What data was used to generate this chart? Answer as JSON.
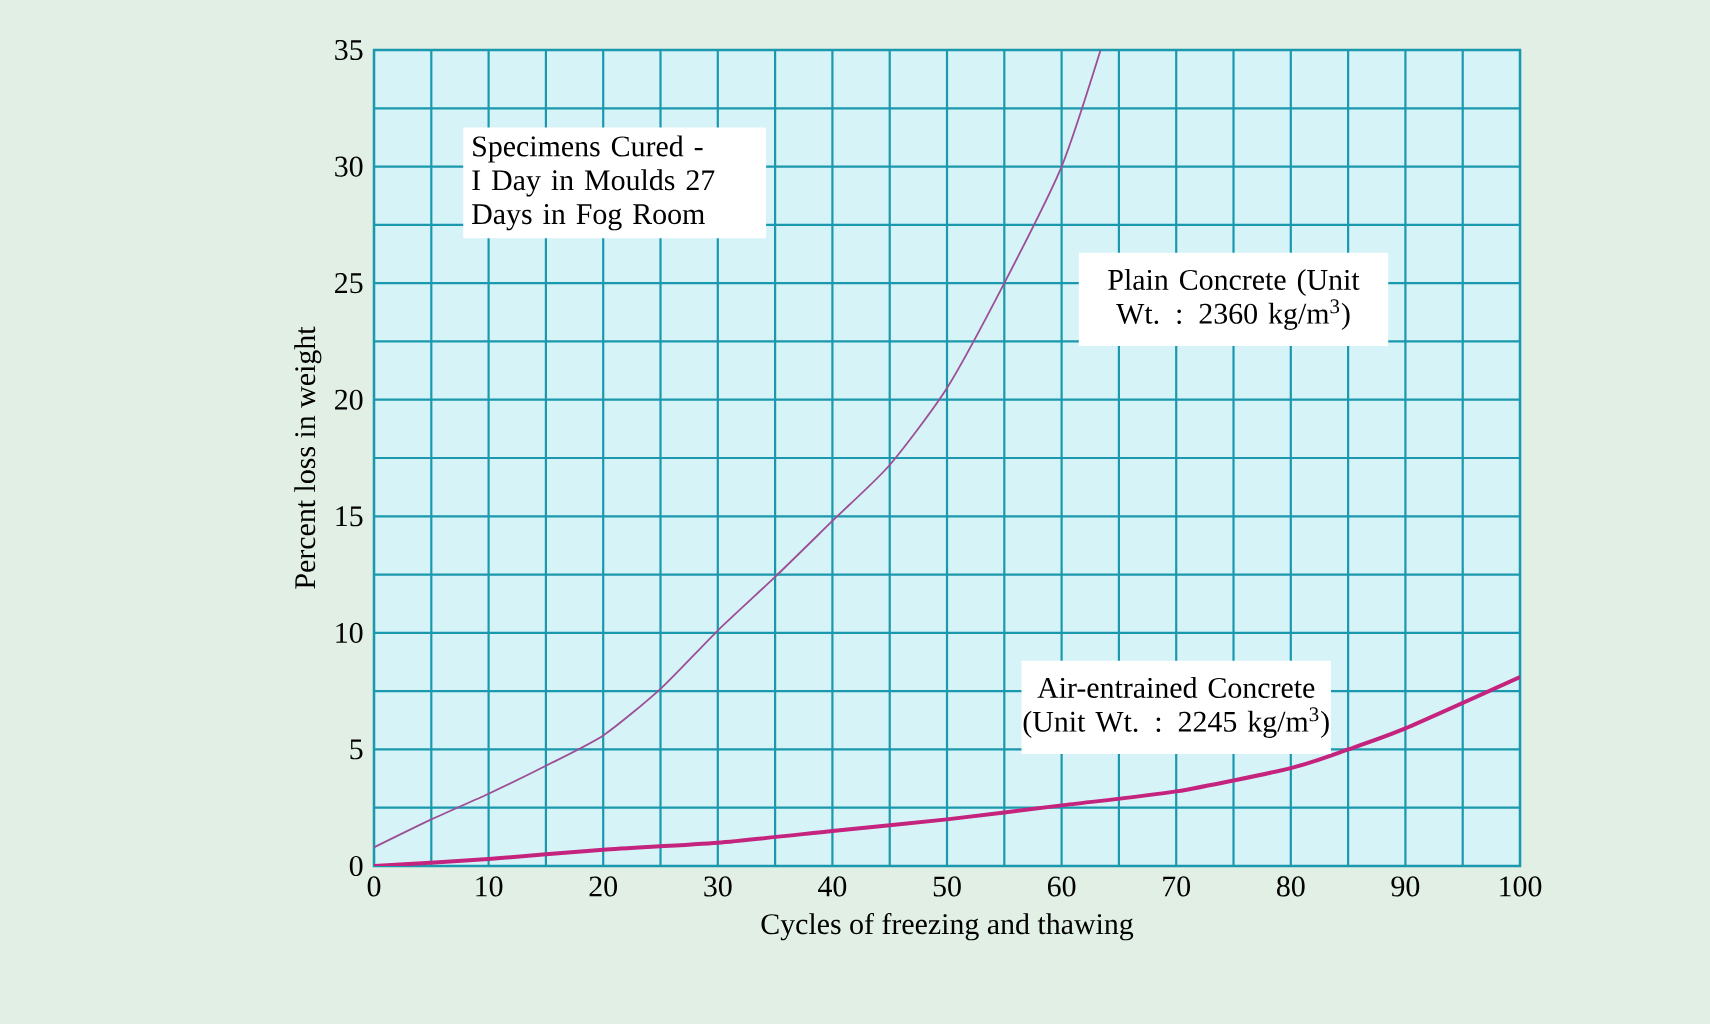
{
  "chart_data": {
    "type": "line",
    "xlabel": "Cycles of freezing and thawing",
    "ylabel": "Percent loss in weight",
    "xlim": [
      0,
      100
    ],
    "ylim": [
      0,
      35
    ],
    "xticks": [
      0,
      10,
      20,
      30,
      40,
      50,
      60,
      70,
      80,
      90,
      100
    ],
    "yticks": [
      0,
      5,
      10,
      15,
      20,
      25,
      30,
      35
    ],
    "grid": true,
    "marker": "none",
    "line_style": "solid",
    "legend": false,
    "annotations": [
      "Specimens Cured - I Day in Moulds 27 Days in Fog Room"
    ],
    "series": [
      {
        "name": "Plain Concrete (Unit Wt. : 2360 kg/m$^{3}$)",
        "color": "#9c4f96",
        "x": [
          0,
          5,
          10,
          15,
          20,
          25,
          30,
          35,
          40,
          45,
          50,
          55,
          60,
          63.4
        ],
        "values": [
          0.8,
          2.0,
          3.1,
          4.3,
          5.6,
          7.6,
          10.1,
          12.4,
          14.8,
          17.2,
          20.5,
          25.0,
          30.0,
          35.0
        ]
      },
      {
        "name": "Air-entrained Concrete (Unit Wt. : 2245 kg/m$^{3}$)",
        "color": "#c4237e",
        "x": [
          0,
          10,
          20,
          30,
          40,
          50,
          60,
          70,
          80,
          85,
          90,
          100
        ],
        "values": [
          0,
          0.3,
          0.7,
          1.0,
          1.5,
          2.0,
          2.6,
          3.2,
          4.2,
          5.0,
          5.9,
          8.1
        ]
      }
    ]
  }
}
